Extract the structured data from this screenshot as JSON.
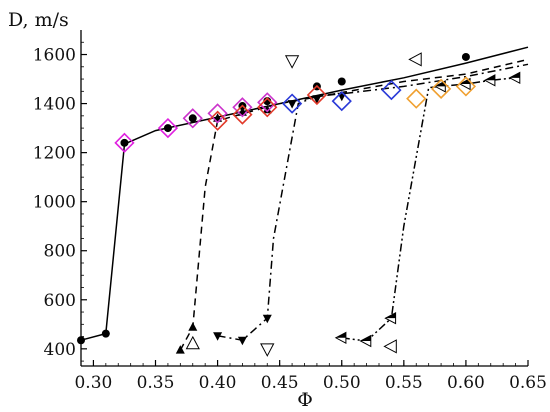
{
  "chart_data": {
    "type": "line",
    "ylabel": "D, m/s",
    "xlabel": "Φ",
    "xlim": [
      0.29,
      0.65
    ],
    "ylim": [
      330,
      1700
    ],
    "x_ticks": [
      0.3,
      0.35,
      0.4,
      0.45,
      0.5,
      0.55,
      0.6,
      0.65
    ],
    "x_tick_labels": [
      "0.30",
      "0.35",
      "0.40",
      "0.45",
      "0.50",
      "0.55",
      "0.60",
      "0.65"
    ],
    "y_ticks": [
      400,
      600,
      800,
      1000,
      1200,
      1400,
      1600
    ],
    "y_tick_labels": [
      "400",
      "600",
      "800",
      "1000",
      "1200",
      "1400",
      "1600"
    ],
    "curves": [
      {
        "style": "solid",
        "x": [
          0.29,
          0.31,
          0.325,
          0.35,
          0.4,
          0.45,
          0.5,
          0.55,
          0.6,
          0.65
        ],
        "y": [
          435,
          462,
          1235,
          1290,
          1345,
          1400,
          1455,
          1505,
          1565,
          1630
        ]
      },
      {
        "style": "dashed",
        "x": [
          0.37,
          0.38,
          0.39,
          0.4,
          0.45,
          0.5,
          0.55,
          0.6,
          0.65
        ],
        "y": [
          395,
          488,
          1060,
          1330,
          1400,
          1445,
          1490,
          1520,
          1580
        ]
      },
      {
        "style": "dash-dot",
        "x": [
          0.4,
          0.42,
          0.44,
          0.445,
          0.465,
          0.48,
          0.5,
          0.55,
          0.6,
          0.65
        ],
        "y": [
          453,
          435,
          525,
          850,
          1400,
          1430,
          1440,
          1470,
          1510,
          1560
        ]
      },
      {
        "style": "dash-dot-dot",
        "x": [
          0.5,
          0.52,
          0.54,
          0.55,
          0.57,
          0.6,
          0.62,
          0.64
        ],
        "y": [
          445,
          432,
          525,
          900,
          1465,
          1480,
          1495,
          1505
        ]
      }
    ],
    "series": [
      {
        "marker": "filled-circle",
        "x": [
          0.29,
          0.31,
          0.325,
          0.36,
          0.38,
          0.42,
          0.44,
          0.48,
          0.5,
          0.6
        ],
        "y": [
          435,
          462,
          1240,
          1300,
          1340,
          1390,
          1410,
          1470,
          1490,
          1590
        ]
      },
      {
        "marker": "filled-triangle-up",
        "x": [
          0.37,
          0.38,
          0.4,
          0.42,
          0.44
        ],
        "y": [
          395,
          488,
          1340,
          1365,
          1375
        ]
      },
      {
        "marker": "filled-triangle-down",
        "x": [
          0.4,
          0.42,
          0.44,
          0.46,
          0.48,
          0.5
        ],
        "y": [
          453,
          435,
          525,
          1400,
          1420,
          1430
        ]
      },
      {
        "marker": "half-triangle-left",
        "x": [
          0.5,
          0.52,
          0.54,
          0.58,
          0.6,
          0.62,
          0.64
        ],
        "y": [
          445,
          432,
          525,
          1470,
          1480,
          1495,
          1505
        ]
      },
      {
        "marker": "open-diamond",
        "color": "#e020e0",
        "x": [
          0.325,
          0.36
        ],
        "y": [
          1240,
          1300
        ]
      },
      {
        "marker": "open-diamond",
        "color": "#cc33cc",
        "x": [
          0.38,
          0.4,
          0.42,
          0.44
        ],
        "y": [
          1340,
          1360,
          1385,
          1405
        ]
      },
      {
        "marker": "open-diamond",
        "color": "#e23a2a",
        "x": [
          0.4,
          0.42,
          0.44,
          0.48
        ],
        "y": [
          1330,
          1355,
          1385,
          1435
        ]
      },
      {
        "marker": "open-diamond",
        "color": "#2a3ad8",
        "x": [
          0.46,
          0.5,
          0.54
        ],
        "y": [
          1400,
          1410,
          1455
        ]
      },
      {
        "marker": "open-diamond",
        "color": "#f0a030",
        "x": [
          0.56,
          0.58,
          0.6
        ],
        "y": [
          1420,
          1460,
          1470
        ]
      },
      {
        "marker": "open-triangle-up",
        "x": [
          0.38
        ],
        "y": [
          420
        ]
      },
      {
        "marker": "open-triangle-down",
        "x": [
          0.44,
          0.46
        ],
        "y": [
          400,
          1575
        ]
      },
      {
        "marker": "open-triangle-left",
        "x": [
          0.54,
          0.56
        ],
        "y": [
          410,
          1580
        ]
      }
    ]
  }
}
